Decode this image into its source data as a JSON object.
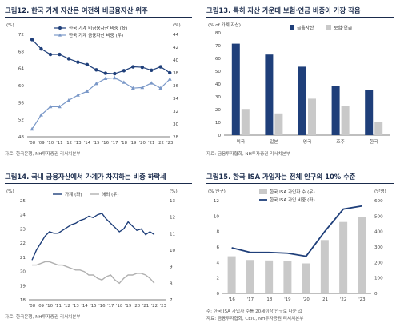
{
  "panels": {
    "p12": {
      "title": "그림12. 한국 가계 자산은 여전히 비금융자산 위주",
      "source": "자료: 한국은행, NH투자증권 리서치본부"
    },
    "p13": {
      "title": "그림13. 특히 자산 가운데 보험·연금 비중이 가장 작음",
      "source": "자료: 금융투자협회, NH투자증권 리서치본부"
    },
    "p14": {
      "title": "그림14. 국내 금융자산에서 가계가 차지하는 비중 하락세",
      "source": "자료: 한국은행, NH투자증권 리서치본부"
    },
    "p15": {
      "title": "그림15. 한국 ISA 가입자는 전체 인구의 10% 수준",
      "source_note": "주: 한국 ISA 가입자 수를 20세이상 인구로 나눈 값",
      "source": "자료: 금융투자협회, CEIC, NH투자증권 리서치본부"
    }
  },
  "chart_data": [
    {
      "id": "fig12",
      "type": "line",
      "unit_left": "(%)",
      "unit_right": "(%)",
      "categories": [
        "'08",
        "'09",
        "'10",
        "'11",
        "'12",
        "'13",
        "'14",
        "'15",
        "'16",
        "'17",
        "'18",
        "'19",
        "'20",
        "'21",
        "'22",
        "'23"
      ],
      "series": [
        {
          "name": "한국 가계 비금융자산 비중 (좌)",
          "axis": "left",
          "color": "#1f3f7a",
          "marker": "circle",
          "values": [
            70.8,
            68.6,
            67.3,
            67.3,
            66.3,
            65.5,
            64.9,
            63.7,
            62.9,
            62.8,
            63.5,
            64.4,
            64.3,
            63.6,
            64.4,
            63.0
          ]
        },
        {
          "name": "한국 가계 금융자산 비중 (우)",
          "axis": "right",
          "color": "#7a98c8",
          "marker": "triangle",
          "values": [
            29.2,
            31.4,
            32.7,
            32.7,
            33.7,
            34.5,
            35.1,
            36.3,
            37.1,
            37.2,
            36.5,
            35.6,
            35.7,
            36.4,
            35.6,
            37.0
          ]
        }
      ],
      "ylim_left": [
        48,
        72
      ],
      "yticks_left": [
        48,
        52,
        56,
        60,
        64,
        68,
        72
      ],
      "ylim_right": [
        28,
        44
      ],
      "yticks_right": [
        28,
        30,
        32,
        34,
        36,
        38,
        40,
        42,
        44
      ]
    },
    {
      "id": "fig13",
      "type": "bar",
      "unit": "(% of 가계 자산)",
      "categories": [
        "미국",
        "일본",
        "영국",
        "호주",
        "한국"
      ],
      "series": [
        {
          "name": "금융자산",
          "color": "#1f3f7a",
          "values": [
            71.5,
            63,
            53.5,
            38.5,
            35.5
          ]
        },
        {
          "name": "보험·연금",
          "color": "#c9c9c9",
          "values": [
            20.5,
            17,
            28.5,
            22.5,
            10.5
          ]
        }
      ],
      "ylim": [
        0,
        80
      ],
      "yticks": [
        0,
        10,
        20,
        30,
        40,
        50,
        60,
        70,
        80
      ]
    },
    {
      "id": "fig14",
      "type": "line",
      "unit_left": "(%)",
      "unit_right": "(%)",
      "categories": [
        "'08",
        "'09",
        "'10",
        "'11",
        "'12",
        "'13",
        "'14",
        "'15",
        "'16",
        "'17",
        "'18",
        "'19",
        "'20",
        "'21",
        "'22",
        "'23"
      ],
      "series": [
        {
          "name": "가계 (좌)",
          "axis": "left",
          "color": "#1f3f7a",
          "x": [
            2008,
            2008.5,
            2009,
            2009.5,
            2010,
            2010.5,
            2011,
            2011.5,
            2012,
            2012.5,
            2013,
            2013.5,
            2014,
            2014.5,
            2015,
            2015.5,
            2016,
            2016.5,
            2017,
            2017.5,
            2018,
            2018.5,
            2019,
            2019.5,
            2020,
            2020.5,
            2021,
            2021.5,
            2022
          ],
          "values": [
            20.8,
            21.5,
            22.0,
            22.5,
            22.8,
            22.7,
            22.7,
            22.9,
            23.1,
            23.3,
            23.4,
            23.6,
            23.7,
            23.9,
            23.8,
            24.0,
            24.1,
            23.7,
            23.4,
            23.1,
            22.8,
            23.0,
            23.5,
            23.2,
            22.9,
            23.0,
            22.6,
            22.8,
            22.6
          ]
        },
        {
          "name": "해외 (우)",
          "axis": "right",
          "color": "#b0b0b0",
          "x": [
            2008,
            2008.5,
            2009,
            2009.5,
            2010,
            2010.5,
            2011,
            2011.5,
            2012,
            2012.5,
            2013,
            2013.5,
            2014,
            2014.5,
            2015,
            2015.5,
            2016,
            2016.5,
            2017,
            2017.5,
            2018,
            2018.5,
            2019,
            2019.5,
            2020,
            2020.5,
            2021,
            2021.5,
            2022
          ],
          "values": [
            9.1,
            9.1,
            9.2,
            9.3,
            9.3,
            9.2,
            9.1,
            9.1,
            9.0,
            8.9,
            8.8,
            8.8,
            8.7,
            8.5,
            8.5,
            8.3,
            8.2,
            8.4,
            8.5,
            8.2,
            8.0,
            8.3,
            8.5,
            8.5,
            8.6,
            8.6,
            8.5,
            8.3,
            8.0
          ]
        }
      ],
      "ylim_left": [
        18,
        25
      ],
      "yticks_left": [
        18,
        19,
        20,
        21,
        22,
        23,
        24,
        25
      ],
      "ylim_right": [
        7,
        13
      ],
      "yticks_right": [
        7,
        8,
        9,
        10,
        11,
        12,
        13
      ]
    },
    {
      "id": "fig15",
      "type": "bar",
      "unit_left": "(% 인구)",
      "unit_right": "(만명)",
      "categories": [
        "'16",
        "'17",
        "'18",
        "'19",
        "'20",
        "'21",
        "'22",
        "'23"
      ],
      "series": [
        {
          "name": "한국 ISA 가입자 수 (우)",
          "type": "bar",
          "axis": "right",
          "color": "#c9c9c9",
          "values": [
            240,
            216,
            213,
            212,
            194,
            345,
            462,
            492
          ]
        },
        {
          "name": "한국 ISA 가입 비중 (좌)",
          "type": "line",
          "axis": "left",
          "color": "#1f3f7a",
          "values": [
            5.9,
            5.3,
            5.3,
            5.2,
            4.8,
            8.0,
            10.9,
            11.3
          ]
        }
      ],
      "ylim_left": [
        0,
        12
      ],
      "yticks_left": [
        0,
        2,
        4,
        6,
        8,
        10,
        12
      ],
      "ylim_right": [
        0,
        600
      ],
      "yticks_right": [
        0,
        100,
        200,
        300,
        400,
        500,
        600
      ]
    }
  ]
}
